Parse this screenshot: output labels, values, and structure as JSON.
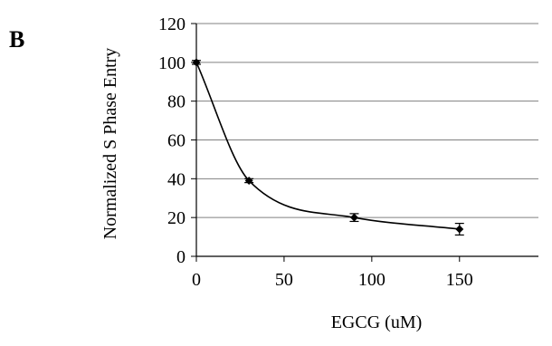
{
  "panel_label": "B",
  "chart_data": {
    "type": "line",
    "title": "",
    "xlabel": "EGCG (uM)",
    "ylabel": "Normalized S Phase Entry",
    "xlim": [
      0,
      195
    ],
    "ylim": [
      0,
      120
    ],
    "xticks": [
      0,
      50,
      100,
      150
    ],
    "yticks": [
      0,
      20,
      40,
      60,
      80,
      100,
      120
    ],
    "grid": "horizontal",
    "legend": "none",
    "series": [
      {
        "x": [
          0,
          30,
          90,
          150
        ],
        "y": [
          100,
          39,
          20,
          14
        ],
        "error": [
          1,
          1,
          2,
          3
        ]
      }
    ],
    "colors": {
      "line": "#000000",
      "grid": "#808080",
      "axis": "#000000"
    }
  }
}
